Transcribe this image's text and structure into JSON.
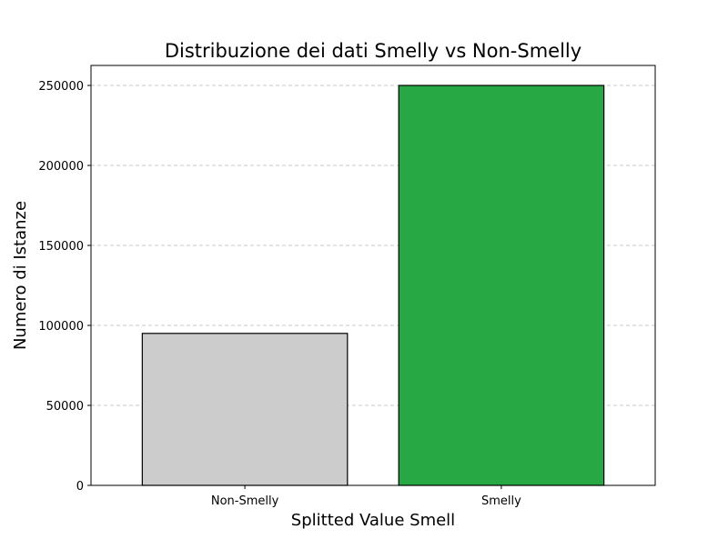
{
  "chart_data": {
    "type": "bar",
    "title": "Distribuzione dei dati Smelly vs Non-Smelly",
    "xlabel": "Splitted Value Smell",
    "ylabel": "Numero di Istanze",
    "categories": [
      "Non-Smelly",
      "Smelly"
    ],
    "values": [
      95000,
      250000
    ],
    "bar_colors": [
      "#cccccc",
      "#28a745"
    ],
    "bar_edge_color": "#000000",
    "ylim": [
      0,
      262500
    ],
    "yticks": [
      0,
      50000,
      100000,
      150000,
      200000,
      250000
    ],
    "ytick_labels": [
      "0",
      "50000",
      "100000",
      "150000",
      "200000",
      "250000"
    ],
    "grid": {
      "axis": "y",
      "style": "dashed",
      "color": "#c8c8c8"
    },
    "legend": "none"
  }
}
